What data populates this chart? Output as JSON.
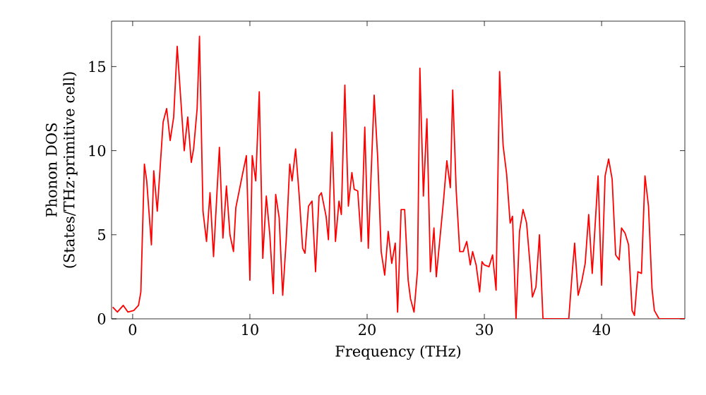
{
  "chart_data": {
    "type": "line",
    "xlabel": "Frequency (THz)",
    "ylabel": "Phonon DOS (States/THz·primitive cell)",
    "xlim": [
      -1.8,
      47.1
    ],
    "ylim": [
      0,
      17.7
    ],
    "xticks": [
      0,
      10,
      20,
      30,
      40
    ],
    "yticks": [
      0,
      5,
      10,
      15
    ],
    "marker": "none",
    "line_style": "solid",
    "series": [
      {
        "color": "#ff0000",
        "x": [
          -1.7,
          -1.3,
          -0.8,
          -0.4,
          0.1,
          0.5,
          0.7,
          1.0,
          1.2,
          1.6,
          1.8,
          2.1,
          2.6,
          2.9,
          3.2,
          3.5,
          3.8,
          4.4,
          4.7,
          5.0,
          5.2,
          5.5,
          5.7,
          6.0,
          6.3,
          6.6,
          6.9,
          7.4,
          7.7,
          8.0,
          8.3,
          8.6,
          8.8,
          9.4,
          9.7,
          10.0,
          10.2,
          10.5,
          10.8,
          11.1,
          11.4,
          11.7,
          12.0,
          12.2,
          12.5,
          12.8,
          13.1,
          13.4,
          13.6,
          13.9,
          14.2,
          14.5,
          14.7,
          15.0,
          15.3,
          15.6,
          15.9,
          16.1,
          16.5,
          16.7,
          17.0,
          17.3,
          17.6,
          17.8,
          18.1,
          18.4,
          18.7,
          18.9,
          19.2,
          19.5,
          19.8,
          20.1,
          20.6,
          20.9,
          21.2,
          21.5,
          21.8,
          22.1,
          22.4,
          22.6,
          22.9,
          23.2,
          23.5,
          23.7,
          24.0,
          24.3,
          24.5,
          24.8,
          25.1,
          25.4,
          25.7,
          25.9,
          26.2,
          26.5,
          26.8,
          27.1,
          27.3,
          27.6,
          27.9,
          28.2,
          28.5,
          28.8,
          29.0,
          29.3,
          29.6,
          29.8,
          30.0,
          30.4,
          30.7,
          31.0,
          31.3,
          31.6,
          31.9,
          32.2,
          32.4,
          32.7,
          33.0,
          33.3,
          33.6,
          33.9,
          34.1,
          34.4,
          34.7,
          35.0,
          37.2,
          37.5,
          37.7,
          38.0,
          38.3,
          38.6,
          38.9,
          39.2,
          39.4,
          39.7,
          40.0,
          40.3,
          40.6,
          40.9,
          41.2,
          41.5,
          41.7,
          42.0,
          42.3,
          42.6,
          42.8,
          43.1,
          43.4,
          43.7,
          44.0,
          44.3,
          44.5,
          44.9,
          47.1
        ],
        "values": [
          0.7,
          0.4,
          0.8,
          0.4,
          0.5,
          0.8,
          1.6,
          9.2,
          8.2,
          4.4,
          8.8,
          6.4,
          11.7,
          12.5,
          10.6,
          12.0,
          16.2,
          10.0,
          12.0,
          9.3,
          10.1,
          12.5,
          16.8,
          6.4,
          4.6,
          7.5,
          3.7,
          10.2,
          4.8,
          7.9,
          5.0,
          4.0,
          6.6,
          8.7,
          9.7,
          2.3,
          9.7,
          8.2,
          13.5,
          3.6,
          7.3,
          5.0,
          1.5,
          7.4,
          6.0,
          1.4,
          4.7,
          9.2,
          8.2,
          10.1,
          7.4,
          4.2,
          3.9,
          6.7,
          7.0,
          2.8,
          7.3,
          7.5,
          6.1,
          4.7,
          11.1,
          4.6,
          7.0,
          6.2,
          13.9,
          6.7,
          8.7,
          7.7,
          7.6,
          4.6,
          11.4,
          4.2,
          13.3,
          9.6,
          4.0,
          2.6,
          5.2,
          3.3,
          4.5,
          0.4,
          6.5,
          6.5,
          2.3,
          1.2,
          0.4,
          2.9,
          14.9,
          7.3,
          11.9,
          2.8,
          5.4,
          2.5,
          4.7,
          6.9,
          9.4,
          7.8,
          13.6,
          7.6,
          4.0,
          4.0,
          4.6,
          3.2,
          4.0,
          3.2,
          1.6,
          3.4,
          3.2,
          3.1,
          3.8,
          1.7,
          14.7,
          10.3,
          8.6,
          5.7,
          6.1,
          0.0,
          5.2,
          6.5,
          5.7,
          3.2,
          1.3,
          1.9,
          5.0,
          0.0,
          0.0,
          2.8,
          4.5,
          1.4,
          2.2,
          3.3,
          6.2,
          2.7,
          5.0,
          8.5,
          2.0,
          8.5,
          9.5,
          8.3,
          3.8,
          3.5,
          5.4,
          5.1,
          4.4,
          0.5,
          0.2,
          2.8,
          2.7,
          8.5,
          6.7,
          1.8,
          0.5,
          0.0,
          0.0
        ]
      }
    ]
  }
}
